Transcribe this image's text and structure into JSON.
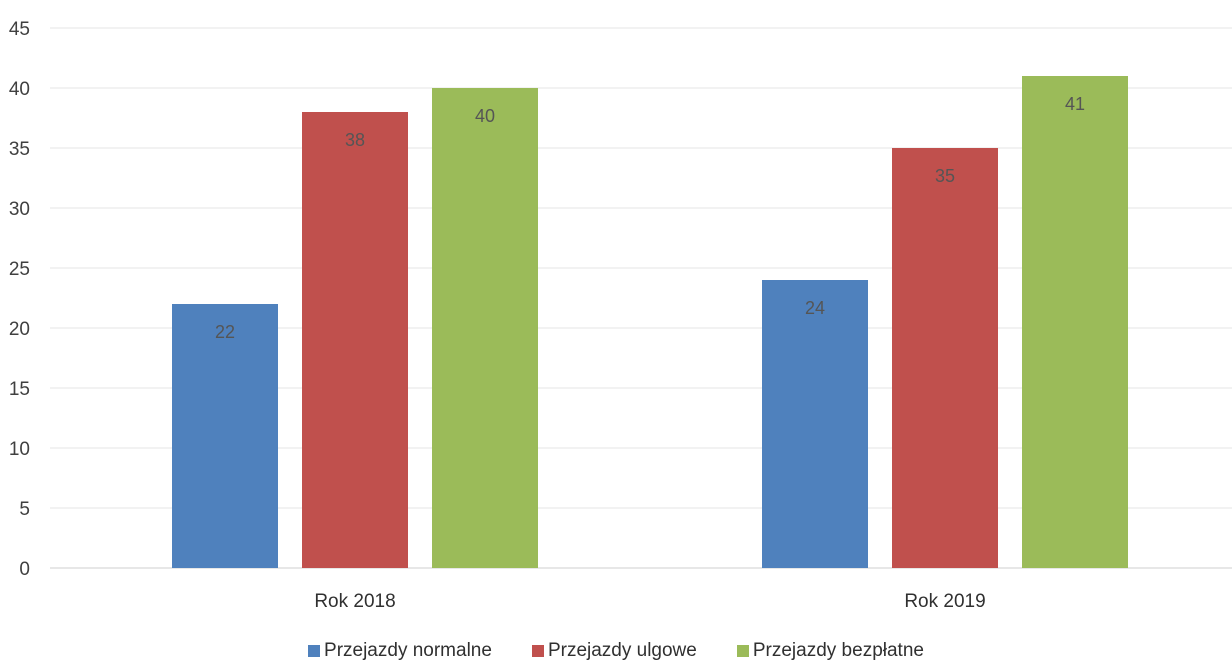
{
  "chart_data": {
    "type": "bar",
    "categories": [
      "Rok 2018",
      "Rok 2019"
    ],
    "series": [
      {
        "name": "Przejazdy normalne",
        "values": [
          22,
          24
        ],
        "color": "#4f81bd"
      },
      {
        "name": "Przejazdy ulgowe",
        "values": [
          38,
          35
        ],
        "color": "#c0504d"
      },
      {
        "name": "Przejazdy bezpłatne",
        "values": [
          40,
          41
        ],
        "color": "#9bbb59"
      }
    ],
    "yticks": [
      "0",
      "5",
      "10",
      "15",
      "20",
      "25",
      "30",
      "35",
      "40",
      "45"
    ],
    "ylim": [
      0,
      45
    ],
    "grid": true,
    "legend_position": "bottom",
    "data_labels": true
  }
}
